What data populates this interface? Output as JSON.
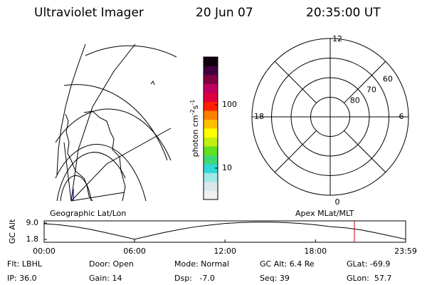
{
  "header": {
    "instrument": "Ultraviolet Imager",
    "date": "20 Jun 07",
    "time": "20:35:00 UT"
  },
  "map": {
    "label": "Geographic Lat/Lon"
  },
  "colorbar": {
    "label": [
      "photon cm",
      "-2",
      "s",
      "-1"
    ],
    "scale": "log",
    "lim": [
      3.2,
      566
    ],
    "ticks": [
      10,
      100
    ],
    "colors": [
      "#f0f0f0",
      "#d8e8ec",
      "#a0e8e8",
      "#30d8d8",
      "#40d870",
      "#60e020",
      "#c0f010",
      "#ffff00",
      "#ffc000",
      "#ff8000",
      "#ff2000",
      "#e00040",
      "#c00060",
      "#800040",
      "#400040",
      "#100010"
    ]
  },
  "polar": {
    "label": "Apex MLat/MLT",
    "rlim": [
      90,
      50
    ],
    "rings": [
      60,
      70,
      80
    ],
    "hours": [
      0,
      6,
      12,
      18
    ]
  },
  "chart_data": {
    "type": "line",
    "y_label": "GC Alt",
    "x": [
      0,
      1,
      2,
      3,
      4,
      5,
      6,
      7,
      8,
      9,
      10,
      11,
      12,
      13,
      14,
      15,
      16,
      17,
      18,
      19,
      20,
      21,
      22,
      23,
      23.983
    ],
    "values": [
      8.7,
      8.2,
      7.4,
      6.3,
      4.9,
      3.4,
      1.9,
      3.4,
      4.9,
      6.2,
      7.3,
      8.1,
      8.8,
      9.2,
      9.4,
      9.4,
      9.2,
      8.8,
      8.2,
      7.4,
      6.9,
      6.0,
      4.7,
      3.3,
      1.9
    ],
    "color": "#000000",
    "marker_x": 20.583,
    "marker_color": "#cc0000",
    "xlim": [
      0,
      23.983
    ],
    "ylim": [
      0.55,
      9.94
    ],
    "xticks": [
      {
        "value": 0,
        "label": "00:00"
      },
      {
        "value": 6,
        "label": "06:00"
      },
      {
        "value": 12,
        "label": "12:00"
      },
      {
        "value": 18,
        "label": "18:00"
      },
      {
        "value": 23.983,
        "label": "23:59"
      }
    ],
    "yticks": [
      1.8,
      {
        "value": 9,
        "label": "9.0"
      }
    ]
  },
  "status": {
    "rows": [
      [
        "Flt: LBHL",
        "Door: Open",
        "Mode: Normal",
        "GC Alt: 6.4 Re",
        "GLat: -69.9"
      ],
      [
        "IP: 36.0",
        "Gain: 14",
        "Dsp:   -7.0",
        "Seq: 39",
        "GLon:  57.7"
      ]
    ]
  }
}
